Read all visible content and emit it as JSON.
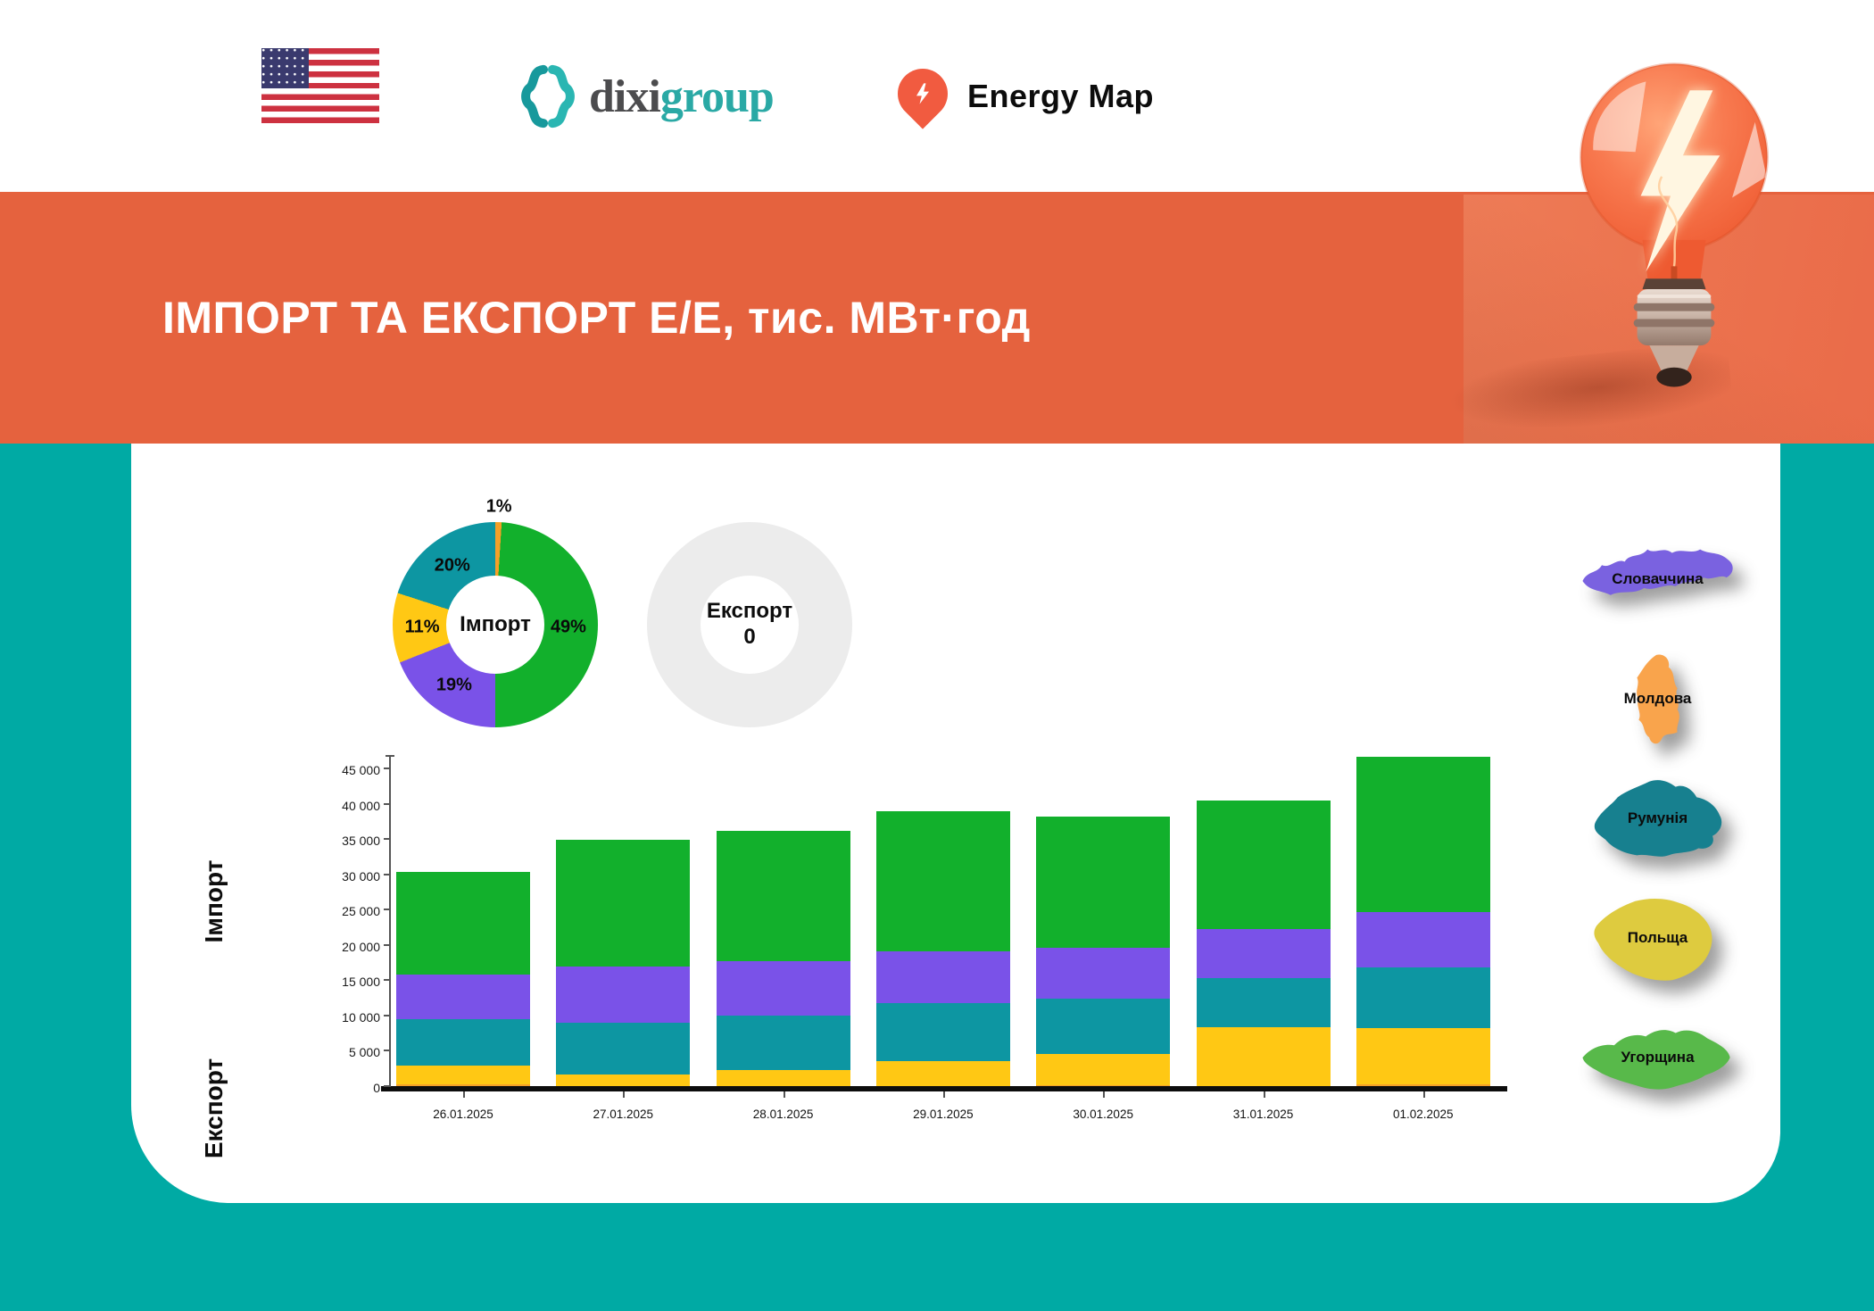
{
  "header": {
    "dixi": "dixi",
    "group": "group",
    "energy_map": "Energy Map"
  },
  "banner": {
    "title": "ІМПОРТ ТА ЕКСПОРТ Е/Е, тис. МВт·год"
  },
  "side_labels": {
    "import": "Імпорт",
    "export": "Експорт"
  },
  "colors": {
    "banner_orange": "#e5623e",
    "page_teal": "#00aaa4",
    "hungary_green": "#12b02c",
    "slovakia_purple": "#7a52e8",
    "romania_teal": "#0d96a2",
    "poland_yellow": "#ffc814",
    "moldova_orange": "#f5a028",
    "export_gray": "#ececec"
  },
  "chart_data": [
    {
      "type": "pie",
      "subtype": "donut",
      "center_label": "Імпорт",
      "slices": [
        {
          "key": "moldova",
          "label": "Молдова",
          "pct": 1,
          "color": "#f5a028"
        },
        {
          "key": "hungary",
          "label": "Угорщина",
          "pct": 49,
          "color": "#12b02c"
        },
        {
          "key": "slovakia",
          "label": "Словаччина",
          "pct": 19,
          "color": "#7a52e8"
        },
        {
          "key": "poland",
          "label": "Польща",
          "pct": 11,
          "color": "#ffc814"
        },
        {
          "key": "romania",
          "label": "Румунія",
          "pct": 20,
          "color": "#0d96a2"
        }
      ]
    },
    {
      "type": "pie",
      "subtype": "donut",
      "center_label": "Експорт",
      "center_value": "0",
      "color": "#ececec",
      "slices": []
    },
    {
      "type": "bar",
      "stacked": true,
      "title": "ІМПОРТ ТА ЕКСПОРТ Е/Е, тис. МВт·год",
      "unit": "МВт·год",
      "categories": [
        "26.01.2025",
        "27.01.2025",
        "28.01.2025",
        "29.01.2025",
        "30.01.2025",
        "31.01.2025",
        "01.02.2025"
      ],
      "series": [
        {
          "key": "moldova",
          "name": "Молдова",
          "color": "#f5a028",
          "values": [
            300,
            0,
            0,
            0,
            150,
            0,
            250
          ]
        },
        {
          "key": "poland",
          "name": "Польща",
          "color": "#ffc814",
          "values": [
            2600,
            1650,
            2300,
            3550,
            4350,
            8300,
            8000
          ]
        },
        {
          "key": "romania",
          "name": "Румунія",
          "color": "#0d96a2",
          "values": [
            6550,
            7350,
            7700,
            8150,
            7900,
            7050,
            8550
          ]
        },
        {
          "key": "slovakia",
          "name": "Словаччина",
          "color": "#7a52e8",
          "values": [
            6350,
            7950,
            7650,
            7350,
            7150,
            6950,
            7850
          ]
        },
        {
          "key": "hungary",
          "name": "Угорщина",
          "color": "#12b02c",
          "values": [
            14500,
            17900,
            18450,
            19850,
            18650,
            18200,
            22050
          ]
        }
      ],
      "totals": [
        30300,
        34850,
        36100,
        38900,
        38200,
        40500,
        46700
      ],
      "ylim": [
        0,
        45000
      ],
      "yticks": [
        0,
        5000,
        10000,
        15000,
        20000,
        25000,
        30000,
        35000,
        40000,
        45000
      ],
      "ytick_labels": [
        "0",
        "5 000",
        "10 000",
        "15 000",
        "20 000",
        "25 000",
        "30 000",
        "35 000",
        "40 000",
        "45 000"
      ],
      "grid": false,
      "legend_position": "right-country-maps"
    }
  ],
  "countries": [
    {
      "key": "slovakia",
      "label": "Словаччина",
      "color": "#7a62e0"
    },
    {
      "key": "moldova",
      "label": "Молдова",
      "color": "#f9a44c"
    },
    {
      "key": "romania",
      "label": "Румунія",
      "color": "#17808f"
    },
    {
      "key": "poland",
      "label": "Польща",
      "color": "#decb3f"
    },
    {
      "key": "hungary",
      "label": "Угорщина",
      "color": "#58b94a"
    }
  ]
}
